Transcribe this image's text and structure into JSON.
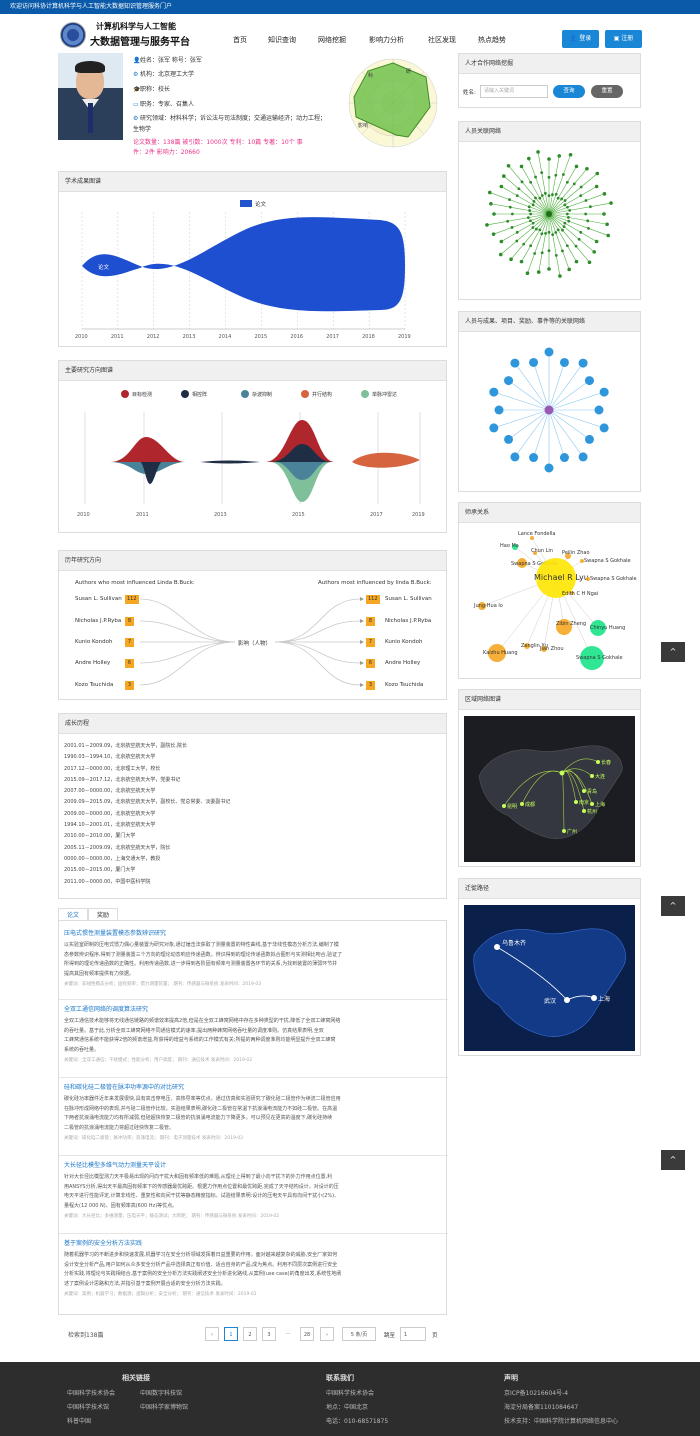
{
  "topbar": "欢迎访问科协计算机科学与人工智能大数据知识管理服务门户",
  "logo": {
    "title1": "计算机科学与人工智能",
    "title2": "大数据管理与服务平台"
  },
  "nav": [
    "首页",
    "知识查询",
    "网络挖掘",
    "影响力分析",
    "社区发现",
    "热点趋势"
  ],
  "auth": {
    "login": "登录",
    "register": "注册"
  },
  "profile": {
    "name_line": "姓名：张军   称号：张军",
    "org": "机构：北京理工大学",
    "title": "职称：校长",
    "duty": "职务：专家、召集人",
    "field": "研究领域：材料科学；诉讼法与司法制度；交通运输经济；动力工程；",
    "field2": "生物学",
    "stats1": "论文数量：138篇    被引数：1000次    专利：10篇    专著：10个    事",
    "stats2": "件：2件    影响力：20660"
  },
  "radar": {
    "labels": [
      "科",
      "研",
      "影响"
    ],
    "values": [
      0.9,
      0.6,
      0.8,
      0.7,
      0.85,
      0.5
    ]
  },
  "panels": {
    "achievements": "学术成果图谱",
    "directions": "主要研究方向图谱",
    "history": "历年研究方向",
    "growth": "成长历程",
    "talent": "人才合作网络挖掘",
    "relation": "人员关联网络",
    "entity": "人员与成果、项目、奖励、事件等的关联网络",
    "mentor": "师承关系",
    "region": "区域网络图谱",
    "migration": "迁徙路径"
  },
  "search": {
    "label": "姓名:",
    "placeholder": "请输入关键词",
    "query": "查询",
    "reset": "重置"
  },
  "chart_data": [
    {
      "type": "area",
      "title": "",
      "legend": [
        "论文"
      ],
      "x": [
        2010,
        2011,
        2012,
        2013,
        2014,
        2015,
        2016,
        2017,
        2018,
        2019
      ],
      "series": [
        {
          "name": "论文",
          "values": [
            2,
            8,
            12,
            18,
            24,
            28,
            30,
            28,
            26,
            22
          ]
        }
      ],
      "label": "论文"
    },
    {
      "type": "area",
      "legend": [
        "目标检测",
        "相控阵",
        "杂波抑制",
        "并行结构",
        "单脉冲雷达"
      ],
      "x": [
        2010,
        2011,
        2013,
        2015,
        2017,
        2019
      ],
      "colors": [
        "#b0262d",
        "#1f2d45",
        "#4a8399",
        "#d5643f",
        "#7fc09a"
      ]
    }
  ],
  "history": {
    "left_title": "Authors who most influenced Linda B.Buck:",
    "right_title": "Authors most influenced by linda B.Buck:",
    "center": "影响（人物）",
    "left": [
      {
        "name": "Susan L. Sullivan",
        "count": "112"
      },
      {
        "name": "Nicholas J.P.Ryba",
        "count": "8"
      },
      {
        "name": "Kunio Kondoh",
        "count": "7"
      },
      {
        "name": "Andre Holley",
        "count": "6"
      },
      {
        "name": "Kozo Tsuchida",
        "count": "3"
      }
    ],
    "right": [
      {
        "name": "Susan L. Sullivan",
        "count": "112"
      },
      {
        "name": "Nicholas J.P.Ryba",
        "count": "8"
      },
      {
        "name": "Kunio Kondoh",
        "count": "7"
      },
      {
        "name": "Andre Holley",
        "count": "6"
      },
      {
        "name": "Kozo Tsuchida",
        "count": "3"
      }
    ]
  },
  "growth": [
    "2001.01－2009.09，北京航空航天大学，副院长,院长",
    "1990.03－1994.10，北京航空航天大学",
    "2017.12－0000.00，北京理工大学，校长",
    "2015.09－2017.12，北京航空航天大学，党委书记",
    "2007.00－0000.00，北京航空航天大学",
    "2009.09－2015.09，北京航空航天大学，副校长、党总常委、淡委副书记",
    "2009.00－0000.00，北京航空航天大学",
    "1994.10－2001.01，北京航空航天大学",
    "2010.00－2010.00，厦门大学",
    "2005.11－2009.09，北京航空航天大学，院长",
    "0000.00－0000.00，上海交通大学，教授",
    "2015.00－2015.00，厦门大学",
    "2011.00－0000.00，中国中医科学院"
  ],
  "tabs": [
    "论文",
    "奖励"
  ],
  "papers": [
    {
      "title": "压电式惯性测量装置模态参数辨识研究",
      "body1": "以实验室研制的压电式惯力偶心量装置为研究对象,通过锤击法获取了测量装置的特性曲线,基于非线性模态分析方法,编制了模",
      "body2": "态参数辨识程序,得到了测量装置三个方向的理论动态响应传递函数。辨识得到的理论传递函数拟合图形与实测相比吻合,验证了",
      "body3": "所得到的理论传递函数的正确性。利用传递函数,进一步得到各阶固有频率与测量装置各环节的关系,为找到装置的薄弱环节并",
      "body4": "提高其固有频率提供有力依据。",
      "meta": "关键词：非线性模态分析；固有频率；惯力测量装置；     期刊：传感器与微系统     发表时间：2019-03"
    },
    {
      "title": "全双工通信网络的调度算法研究",
      "body1": "全双工通信技术能够将无线通信链路的频谱效率提高2倍,但是在全双工蜂窝网络中存在多种类型的干扰,降低了全双工蜂窝网络",
      "body2": "的吞吐量。基于此,分析全双工蜂窝网络不同通信模式的速率,提出两种蜂窝网络吞吐量的调度准则。仿真结果表明,全双",
      "body3": "工蜂窝通信系统不能获得2倍的频谱增益,所获得的增益与系统的工作模式有关;所提的两种调度准则均能明显提升全双工蜂窝",
      "body4": "系统的吞吐量。",
      "meta": "关键词：全双工通信；干扰模式；性能分析；用户调度；     期刊：通信技术     发表时间：2019-02"
    },
    {
      "title": "硅和碳化硅二极管在脉冲功率源中的对比研究",
      "body1": "碳化硅功率器件近年来发展很快,具有高击穿电压、高热导率等优点。通过仿真和实验研究了碳化硅二极管作为续流二极管应用",
      "body2": "在脉冲形成网络中的表现,并与硅二极管作比较。实验结果表明,碳化硅二极管在常温下抗浪涌电流能力不如硅二极管。在高温",
      "body3": "下两者抗浪涌电流能力均有所减弱,但硅超快恢复二极管的抗浪涌电流能力下降更多。可以预见在更高的温度下,碳化硅持续",
      "body4": "二极管的抗浪涌电流能力将超过硅快恢复二极管。",
      "meta": "关键词：碳化硅二极管；脉冲功率；浪涌电流；     期刊：电子测量技术     发表时间：2019-02"
    },
    {
      "title": "大长径比模型多维气动力测量天平设计",
      "body1": "针对大长径比模型测力天平极易出现的问向干扰大和固有频率低的难题,从理论上得到了最小向干扰下的外力作用点位置,利",
      "body2": "用ANSYS分析,得出天平最高固有频率下的传感器最优跨距。根据力作用点位置和最优跨距,完成了天平结构设计。对设计的压",
      "body3": "电天平进行性能评定,计算非线性、重复性和向间干扰等静态精度指标。试验结果表明:设计的压电天平具有向间干扰小(2%)、",
      "body4": "量程大(12 000 N)、固有频率高(600 Hz)等优点。",
      "meta": "关键词：大长径比；多维测量；压电天平；静态测试；大跨距；     期刊：传感器与微系统     发表时间：2019-02"
    },
    {
      "title": "基于案例的安全分析方法实践",
      "body1": "随着机器学习的不断进步和快速发展,机器学习在安全分析领域发挥着日益重要的作用。面对越来越复杂的威胁,安全厂家如何",
      "body2": "设计安全分析产品,用户如何从众多安全分析产品中选择真正有价值、适合自身的产品,成为焦点。利用不同层次案例进行安全",
      "body3": "分析实践,将理论与实践相结合,基于案例的安全分析方法实践阐述安全分析进化路线,从案例(use case)的角度出发,系统性地阐",
      "body4": "述了案例设计思路和方法,并指引基于案例开展合适的安全分析方法实践。",
      "meta": "关键词：案例；机器学习；数据源；逻辑分析；安全分析；     期刊：通信技术     发表时间：2019-01"
    }
  ],
  "pager": {
    "total": "检索到138篇",
    "pages": [
      "1",
      "2",
      "3",
      "···",
      "28"
    ],
    "size": "5 条/页",
    "jump": "跳至",
    "jump_val": "1",
    "page_unit": "页"
  },
  "footer": {
    "links_title": "相关链接",
    "links": [
      "中国科学技术协会",
      "中国数字科技馆",
      "中国科学技术馆",
      "中国科学家博物馆",
      "科普中国"
    ],
    "contact_title": "联系我们",
    "contact": [
      "中国科学技术协会",
      "地点：中国北京",
      "电话：010-68571875"
    ],
    "statement_title": "声明",
    "statement": [
      "京ICP备10216604号-4",
      "海淀分局备案1101084647",
      "技术支持：中国科学院计算机网络信息中心"
    ]
  },
  "mentor_labels": [
    "Lance Fondella",
    "Hao Ma",
    "Chun Lin",
    "Peilin Zhao",
    "Swapna S Gokhale",
    "Swapna S Gokhale",
    "Michael R Lyu",
    "Swapna S Gokhale",
    "Edith C H Ngai",
    "Jung-Hua lo",
    "Zibin Zheng",
    "Chinyu Huang",
    "Zenglin Xu",
    "Kaizhu Huang",
    "Swapna S Gokhale",
    "Jian Zhou"
  ],
  "map_labels": {
    "region": [
      "长春",
      "大连",
      "青岛",
      "南京",
      "上海",
      "杭州",
      "广州",
      "昆明",
      "成都"
    ],
    "migration": [
      "乌鲁木齐",
      "武汉",
      "上海"
    ]
  }
}
